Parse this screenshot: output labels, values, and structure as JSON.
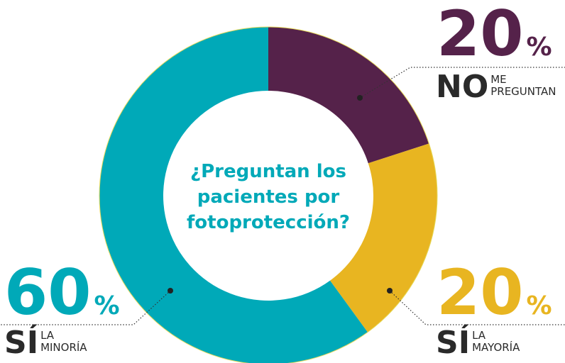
{
  "chart_data": {
    "type": "donut",
    "title": [
      "¿Preguntan los",
      "pacientes por",
      "fotoprotección?"
    ],
    "unit": "%",
    "categories": [
      {
        "main": "NO",
        "sub": [
          "ME",
          "PREGUNTAN"
        ]
      },
      {
        "main": "SÍ",
        "sub": [
          "LA",
          "MAYORÍA"
        ]
      },
      {
        "main": "SÍ",
        "sub": [
          "LA",
          "MINORÍA"
        ]
      }
    ],
    "values": [
      20,
      20,
      60
    ],
    "colors": [
      "#55224a",
      "#e8b521",
      "#00a9b8"
    ]
  }
}
